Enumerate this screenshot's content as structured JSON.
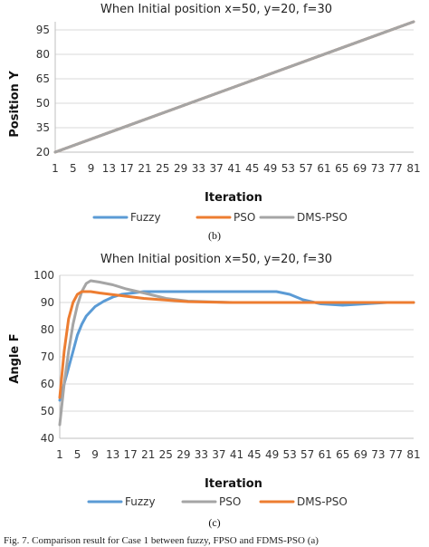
{
  "chart_data": [
    {
      "type": "line",
      "title": "When Initial position x=50, y=20, f=30",
      "xlabel": "Iteration",
      "ylabel": "Position Y",
      "subfigure_label": "(b)",
      "x_ticks": [
        "1",
        "5",
        "9",
        "13",
        "17",
        "21",
        "25",
        "29",
        "33",
        "37",
        "41",
        "45",
        "49",
        "53",
        "57",
        "61",
        "65",
        "69",
        "73",
        "77",
        "81"
      ],
      "xlim": [
        1,
        81
      ],
      "ylim": [
        20,
        100
      ],
      "y_ticks": [
        20,
        35,
        50,
        65,
        80,
        95
      ],
      "grid": "horizontal",
      "legend_position": "bottom",
      "series": [
        {
          "name": "Fuzzy",
          "color": "#5b9bd5",
          "x": [
            1,
            81
          ],
          "y": [
            20,
            100
          ]
        },
        {
          "name": "PSO",
          "color": "#ed7d31",
          "x": [
            1,
            81
          ],
          "y": [
            20,
            100
          ]
        },
        {
          "name": "DMS-PSO",
          "color": "#a5a5a5",
          "x": [
            1,
            81
          ],
          "y": [
            20,
            100
          ]
        }
      ]
    },
    {
      "type": "line",
      "title": "When Initial position x=50, y=20, f=30",
      "xlabel": "Iteration",
      "ylabel": "Angle F",
      "subfigure_label": "(c)",
      "x_ticks": [
        "1",
        "5",
        "9",
        "13",
        "17",
        "21",
        "25",
        "29",
        "33",
        "37",
        "41",
        "45",
        "49",
        "53",
        "57",
        "61",
        "65",
        "69",
        "73",
        "77",
        "81"
      ],
      "xlim": [
        1,
        81
      ],
      "ylim": [
        40,
        100
      ],
      "y_ticks": [
        40,
        50,
        60,
        70,
        80,
        90,
        100
      ],
      "grid": "horizontal",
      "legend_position": "bottom",
      "series": [
        {
          "name": "Fuzzy",
          "color": "#5b9bd5",
          "x": [
            1,
            2,
            3,
            4,
            5,
            6,
            7,
            9,
            11,
            13,
            15,
            20,
            30,
            40,
            50,
            53,
            56,
            60,
            65,
            70,
            75,
            81
          ],
          "y": [
            54,
            60,
            66,
            72,
            78,
            82,
            85,
            88.5,
            90.5,
            92,
            93,
            94,
            94,
            94,
            94,
            93,
            91,
            89.5,
            89,
            89.5,
            90,
            90
          ]
        },
        {
          "name": "PSO",
          "color": "#a5a5a5",
          "x": [
            1,
            2,
            3,
            4,
            5,
            6,
            7,
            8,
            10,
            13,
            16,
            20,
            25,
            30,
            40,
            50,
            60,
            70,
            81
          ],
          "y": [
            45,
            60,
            72,
            82,
            89,
            94,
            97,
            98,
            97.5,
            96.5,
            95,
            93.5,
            91.5,
            90.5,
            90,
            90,
            90,
            90,
            90
          ]
        },
        {
          "name": "DMS-PSO",
          "color": "#ed7d31",
          "x": [
            1,
            2,
            3,
            4,
            5,
            6,
            7,
            8,
            10,
            15,
            20,
            30,
            40,
            50,
            60,
            70,
            81
          ],
          "y": [
            55,
            72,
            84,
            90,
            93,
            94,
            94,
            94,
            93.5,
            92.5,
            91.5,
            90.3,
            90,
            90,
            90,
            90,
            90
          ]
        }
      ]
    }
  ],
  "caption": "Fig. 7. Comparison result for Case 1 between fuzzy, FPSO and FDMS-PSO (a)"
}
